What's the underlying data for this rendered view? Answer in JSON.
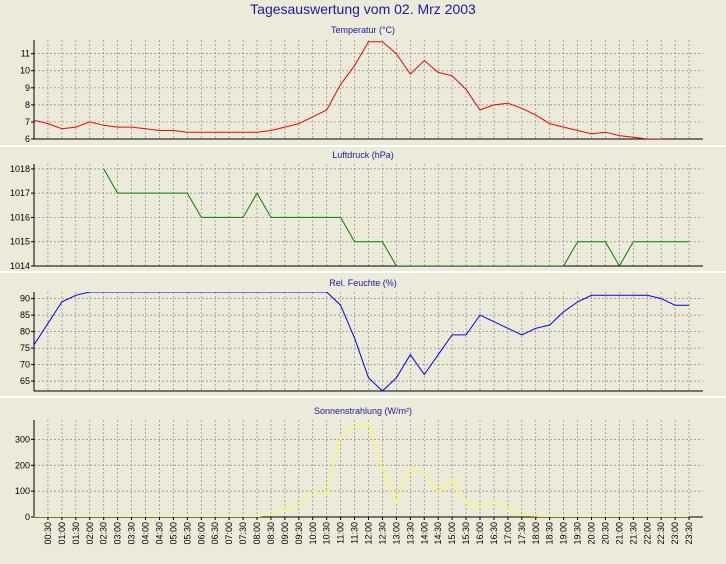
{
  "window": {
    "title": "Tagesauswertung vom 02. Mrz 2003"
  },
  "colors": {
    "background": "#ecead9",
    "panel_separator": "#ffffff",
    "grid": "#8a8a8a",
    "title_text": "#1a1aa6",
    "temperature": "#ff0000",
    "pressure": "#008000",
    "humidity": "#0000ff",
    "radiation": "#ffff40"
  },
  "chart_data": [
    {
      "type": "line",
      "title": "Temperatur (°C)",
      "xlabel": "",
      "ylabel": "",
      "ylim": [
        6,
        11.8
      ],
      "yticks": [
        "6",
        "7",
        "8",
        "9",
        "10",
        "11"
      ],
      "grid": true,
      "series": [
        {
          "color": "#ff0000",
          "x": [
            0,
            0.5,
            1,
            1.5,
            2,
            2.5,
            3,
            3.5,
            4,
            4.5,
            5,
            5.5,
            6,
            6.5,
            7,
            7.5,
            8,
            8.5,
            9,
            9.5,
            10,
            10.5,
            11,
            11.5,
            12,
            12.5,
            13,
            13.5,
            14,
            14.5,
            15,
            15.5,
            16,
            16.5,
            17,
            17.5,
            18,
            18.5,
            19,
            19.5,
            20,
            20.5,
            21,
            21.5,
            22,
            22.5
          ],
          "y": [
            7.1,
            6.9,
            6.6,
            6.7,
            7.0,
            6.8,
            6.7,
            6.7,
            6.6,
            6.5,
            6.5,
            6.4,
            6.4,
            6.4,
            6.4,
            6.4,
            6.4,
            6.5,
            6.7,
            6.9,
            7.3,
            7.7,
            9.2,
            10.3,
            11.7,
            11.7,
            11.0,
            9.8,
            10.6,
            9.9,
            9.7,
            8.9,
            7.7,
            8.0,
            8.1,
            7.8,
            7.4,
            6.9,
            6.7,
            6.5,
            6.3,
            6.4,
            6.2,
            6.1,
            6.0,
            6.0
          ]
        }
      ]
    },
    {
      "type": "line",
      "title": "Luftdruck (hPa)",
      "xlabel": "",
      "ylabel": "",
      "ylim": [
        1014,
        1018.2
      ],
      "yticks": [
        "1014",
        "1015",
        "1016",
        "1017",
        "1018"
      ],
      "grid": true,
      "series": [
        {
          "color": "#008000",
          "x": [
            2.5,
            3,
            3.5,
            4,
            4.5,
            5,
            5.5,
            6,
            6.5,
            7,
            7.5,
            8,
            8.5,
            9,
            9.5,
            10,
            10.5,
            11,
            11.5,
            12,
            12.5,
            13,
            13.5,
            14,
            14.5,
            15,
            15.5,
            16,
            16.5,
            17,
            17.5,
            18,
            18.5,
            19,
            19.5,
            20,
            20.5,
            21,
            21.5,
            22,
            22.5,
            23,
            23.5
          ],
          "y": [
            1018,
            1017,
            1017,
            1017,
            1017,
            1017,
            1017,
            1016,
            1016,
            1016,
            1016,
            1017,
            1016,
            1016,
            1016,
            1016,
            1016,
            1016,
            1015,
            1015,
            1015,
            1014,
            1014,
            1014,
            1014,
            1014,
            1014,
            1014,
            1014,
            1014,
            1014,
            1014,
            1014,
            1014,
            1015,
            1015,
            1015,
            1014,
            1015,
            1015,
            1015,
            1015,
            1015
          ]
        }
      ]
    },
    {
      "type": "line",
      "title": "Rel. Feuchte (%)",
      "xlabel": "",
      "ylabel": "",
      "ylim": [
        62,
        92
      ],
      "yticks": [
        "65",
        "70",
        "75",
        "80",
        "85",
        "90"
      ],
      "grid": true,
      "series": [
        {
          "color": "#0000ff",
          "x": [
            0,
            1,
            1.5,
            2,
            2.5,
            3,
            3.5,
            4,
            4.5,
            5,
            5.5,
            6,
            6.5,
            7,
            7.5,
            8,
            8.5,
            9,
            9.5,
            10,
            10.5,
            11,
            11.5,
            12,
            12.5,
            13,
            13.5,
            14,
            14.5,
            15,
            15.5,
            16,
            16.5,
            17,
            17.5,
            18,
            18.5,
            19,
            19.5,
            20,
            20.5,
            21,
            21.5,
            22,
            22.5,
            23,
            23.5
          ],
          "y": [
            76,
            89,
            91,
            92,
            92,
            92,
            92,
            92,
            92,
            92,
            92,
            92,
            92,
            92,
            92,
            92,
            92,
            92,
            92,
            92,
            92,
            88,
            78,
            66,
            62,
            66,
            73,
            67,
            73,
            79,
            79,
            85,
            83,
            81,
            79,
            81,
            82,
            86,
            89,
            91,
            91,
            91,
            91,
            91,
            90,
            88,
            88
          ]
        }
      ]
    },
    {
      "type": "line",
      "title": "Sonnenstrahlung (W/m²)",
      "xlabel": "",
      "ylabel": "",
      "ylim": [
        0,
        375
      ],
      "yticks": [
        "0",
        "100",
        "200",
        "300"
      ],
      "grid": true,
      "series": [
        {
          "color": "#ffff40",
          "x": [
            0,
            0.5,
            1,
            1.5,
            2,
            2.5,
            3,
            3.5,
            4,
            4.5,
            5,
            5.5,
            6,
            6.5,
            7,
            7.5,
            8,
            8.5,
            9,
            9.5,
            10,
            10.5,
            11,
            11.5,
            12,
            12.5,
            13,
            13.5,
            14,
            14.5,
            15,
            15.5,
            16,
            16.5,
            17,
            17.5,
            18,
            18.5,
            19,
            19.5,
            20,
            20.5,
            21,
            21.5,
            22,
            22.5,
            23,
            23.5
          ],
          "y": [
            0,
            0,
            0,
            0,
            0,
            0,
            0,
            0,
            0,
            0,
            0,
            0,
            0,
            0,
            0,
            0,
            0,
            10,
            30,
            40,
            100,
            90,
            310,
            350,
            360,
            190,
            60,
            190,
            170,
            95,
            140,
            60,
            40,
            60,
            30,
            5,
            3,
            0,
            0,
            0,
            0,
            0,
            0,
            0,
            0,
            0,
            0,
            0
          ]
        }
      ]
    }
  ],
  "x_axis": {
    "tick_labels": [
      "00:30",
      "01:00",
      "01:30",
      "02:00",
      "02:30",
      "03:00",
      "03:30",
      "04:00",
      "04:30",
      "05:00",
      "05:30",
      "06:00",
      "06:30",
      "07:00",
      "07:30",
      "08:00",
      "08:30",
      "09:00",
      "09:30",
      "10:00",
      "10:30",
      "11:00",
      "11:30",
      "12:00",
      "12:30",
      "13:00",
      "13:30",
      "14:00",
      "14:30",
      "15:00",
      "15:30",
      "16:00",
      "16:30",
      "17:00",
      "17:30",
      "18:00",
      "18:30",
      "19:00",
      "19:30",
      "20:00",
      "20:30",
      "21:00",
      "21:30",
      "22:00",
      "22:30",
      "23:00",
      "23:30"
    ]
  }
}
